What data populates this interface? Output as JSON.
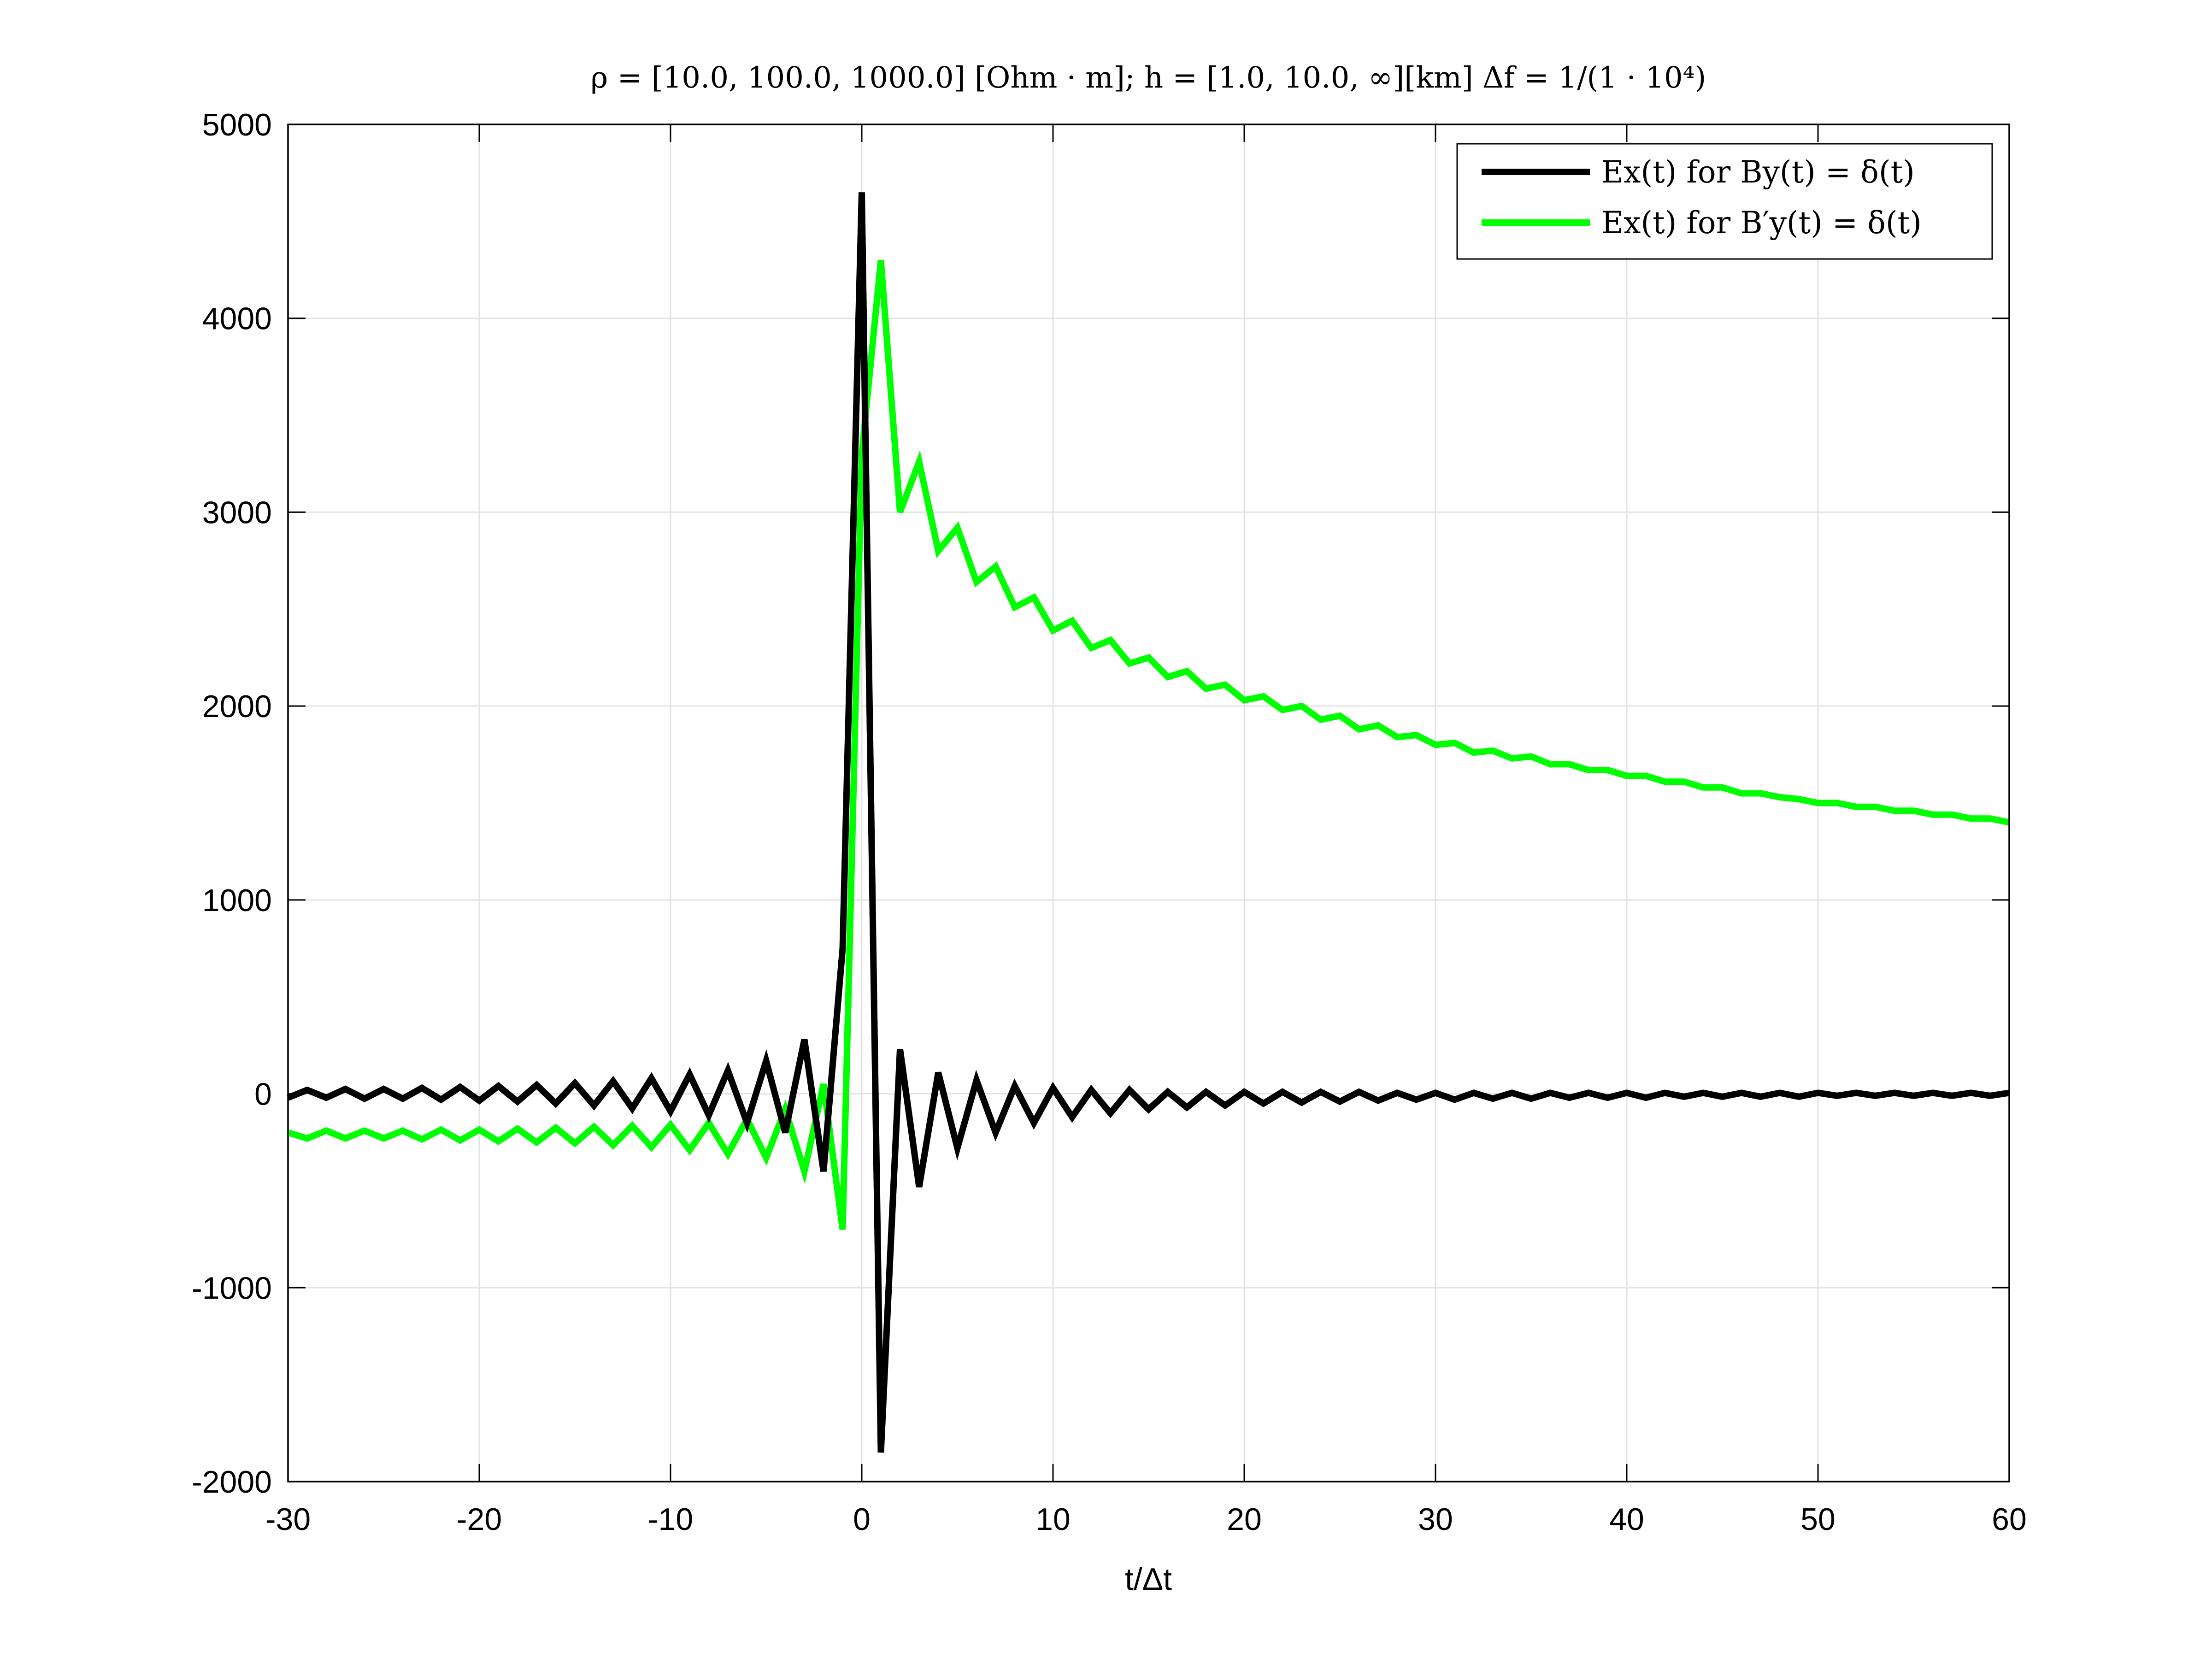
{
  "chart_data": {
    "type": "line",
    "title": "ρ = [10.0, 100.0, 1000.0] [Ohm · m];    h = [1.0, 10.0, ∞][km]    Δf = 1/(1 · 10⁴)",
    "xlabel": "t/Δt",
    "ylabel": "",
    "xlim": [
      -30,
      60
    ],
    "ylim": [
      -2000,
      5000
    ],
    "xticks": [
      -30,
      -20,
      -10,
      0,
      10,
      20,
      30,
      40,
      50,
      60
    ],
    "yticks": [
      -2000,
      -1000,
      0,
      1000,
      2000,
      3000,
      4000,
      5000
    ],
    "xtick_labels": [
      "-30",
      "-20",
      "-10",
      "0",
      "10",
      "20",
      "30",
      "40",
      "50",
      "60"
    ],
    "ytick_labels": [
      "-2000",
      "-1000",
      "0",
      "1000",
      "2000",
      "3000",
      "4000",
      "5000"
    ],
    "grid": true,
    "legend_position": "top-right",
    "series": [
      {
        "name": "Ex(t) for By(t) = δ(t)",
        "color": "#000000",
        "x": [
          -30,
          -29,
          -28,
          -27,
          -26,
          -25,
          -24,
          -23,
          -22,
          -21,
          -20,
          -19,
          -18,
          -17,
          -16,
          -15,
          -14,
          -13,
          -12,
          -11,
          -10,
          -9,
          -8,
          -7,
          -6,
          -5,
          -4,
          -3,
          -2,
          -1,
          0,
          1,
          2,
          3,
          4,
          5,
          6,
          7,
          8,
          9,
          10,
          11,
          12,
          13,
          14,
          15,
          16,
          17,
          18,
          19,
          20,
          21,
          22,
          23,
          24,
          25,
          26,
          27,
          28,
          29,
          30,
          31,
          32,
          33,
          34,
          35,
          36,
          37,
          38,
          39,
          40,
          41,
          42,
          43,
          44,
          45,
          46,
          47,
          48,
          49,
          50,
          51,
          52,
          53,
          54,
          55,
          56,
          57,
          58,
          59,
          60
        ],
        "values": [
          -20,
          20,
          -20,
          25,
          -25,
          25,
          -25,
          30,
          -30,
          35,
          -35,
          40,
          -40,
          45,
          -50,
          55,
          -60,
          65,
          -75,
          80,
          -90,
          100,
          -110,
          120,
          -150,
          170,
          -200,
          280,
          -400,
          750,
          4650,
          -1850,
          230,
          -480,
          110,
          -280,
          70,
          -200,
          40,
          -150,
          30,
          -120,
          20,
          -100,
          20,
          -80,
          10,
          -70,
          10,
          -60,
          10,
          -50,
          10,
          -45,
          10,
          -40,
          10,
          -35,
          5,
          -30,
          5,
          -30,
          5,
          -25,
          5,
          -25,
          5,
          -20,
          5,
          -20,
          5,
          -20,
          5,
          -15,
          5,
          -15,
          5,
          -15,
          5,
          -15,
          5,
          -10,
          5,
          -10,
          5,
          -10,
          5,
          -10,
          5,
          -10,
          5
        ]
      },
      {
        "name": "Ex(t) for B′y(t) = δ(t)",
        "color": "#00ff00",
        "x": [
          -30,
          -29,
          -28,
          -27,
          -26,
          -25,
          -24,
          -23,
          -22,
          -21,
          -20,
          -19,
          -18,
          -17,
          -16,
          -15,
          -14,
          -13,
          -12,
          -11,
          -10,
          -9,
          -8,
          -7,
          -6,
          -5,
          -4,
          -3,
          -2,
          -1,
          0,
          1,
          2,
          3,
          4,
          5,
          6,
          7,
          8,
          9,
          10,
          11,
          12,
          13,
          14,
          15,
          16,
          17,
          18,
          19,
          20,
          21,
          22,
          23,
          24,
          25,
          26,
          27,
          28,
          29,
          30,
          31,
          32,
          33,
          34,
          35,
          36,
          37,
          38,
          39,
          40,
          41,
          42,
          43,
          44,
          45,
          46,
          47,
          48,
          49,
          50,
          51,
          52,
          53,
          54,
          55,
          56,
          57,
          58,
          59,
          60
        ],
        "values": [
          -200,
          -230,
          -190,
          -230,
          -190,
          -230,
          -190,
          -235,
          -185,
          -240,
          -185,
          -245,
          -180,
          -250,
          -175,
          -255,
          -170,
          -265,
          -165,
          -275,
          -160,
          -290,
          -150,
          -310,
          -130,
          -330,
          -80,
          -400,
          50,
          -700,
          3300,
          4300,
          3000,
          3260,
          2800,
          2920,
          2640,
          2720,
          2510,
          2560,
          2390,
          2440,
          2300,
          2340,
          2220,
          2250,
          2150,
          2180,
          2090,
          2110,
          2030,
          2050,
          1980,
          2000,
          1930,
          1950,
          1880,
          1900,
          1840,
          1850,
          1800,
          1810,
          1760,
          1770,
          1730,
          1740,
          1700,
          1700,
          1670,
          1670,
          1640,
          1640,
          1610,
          1610,
          1580,
          1580,
          1550,
          1550,
          1530,
          1520,
          1500,
          1500,
          1480,
          1480,
          1460,
          1460,
          1440,
          1440,
          1420,
          1420,
          1400
        ]
      }
    ],
    "legend_entries": [
      {
        "name": "Ex(t) for By(t) = δ(t)",
        "color": "#000000"
      },
      {
        "name": "Ex(t) for B′y(t) = δ(t)",
        "color": "#00ff00"
      }
    ]
  }
}
